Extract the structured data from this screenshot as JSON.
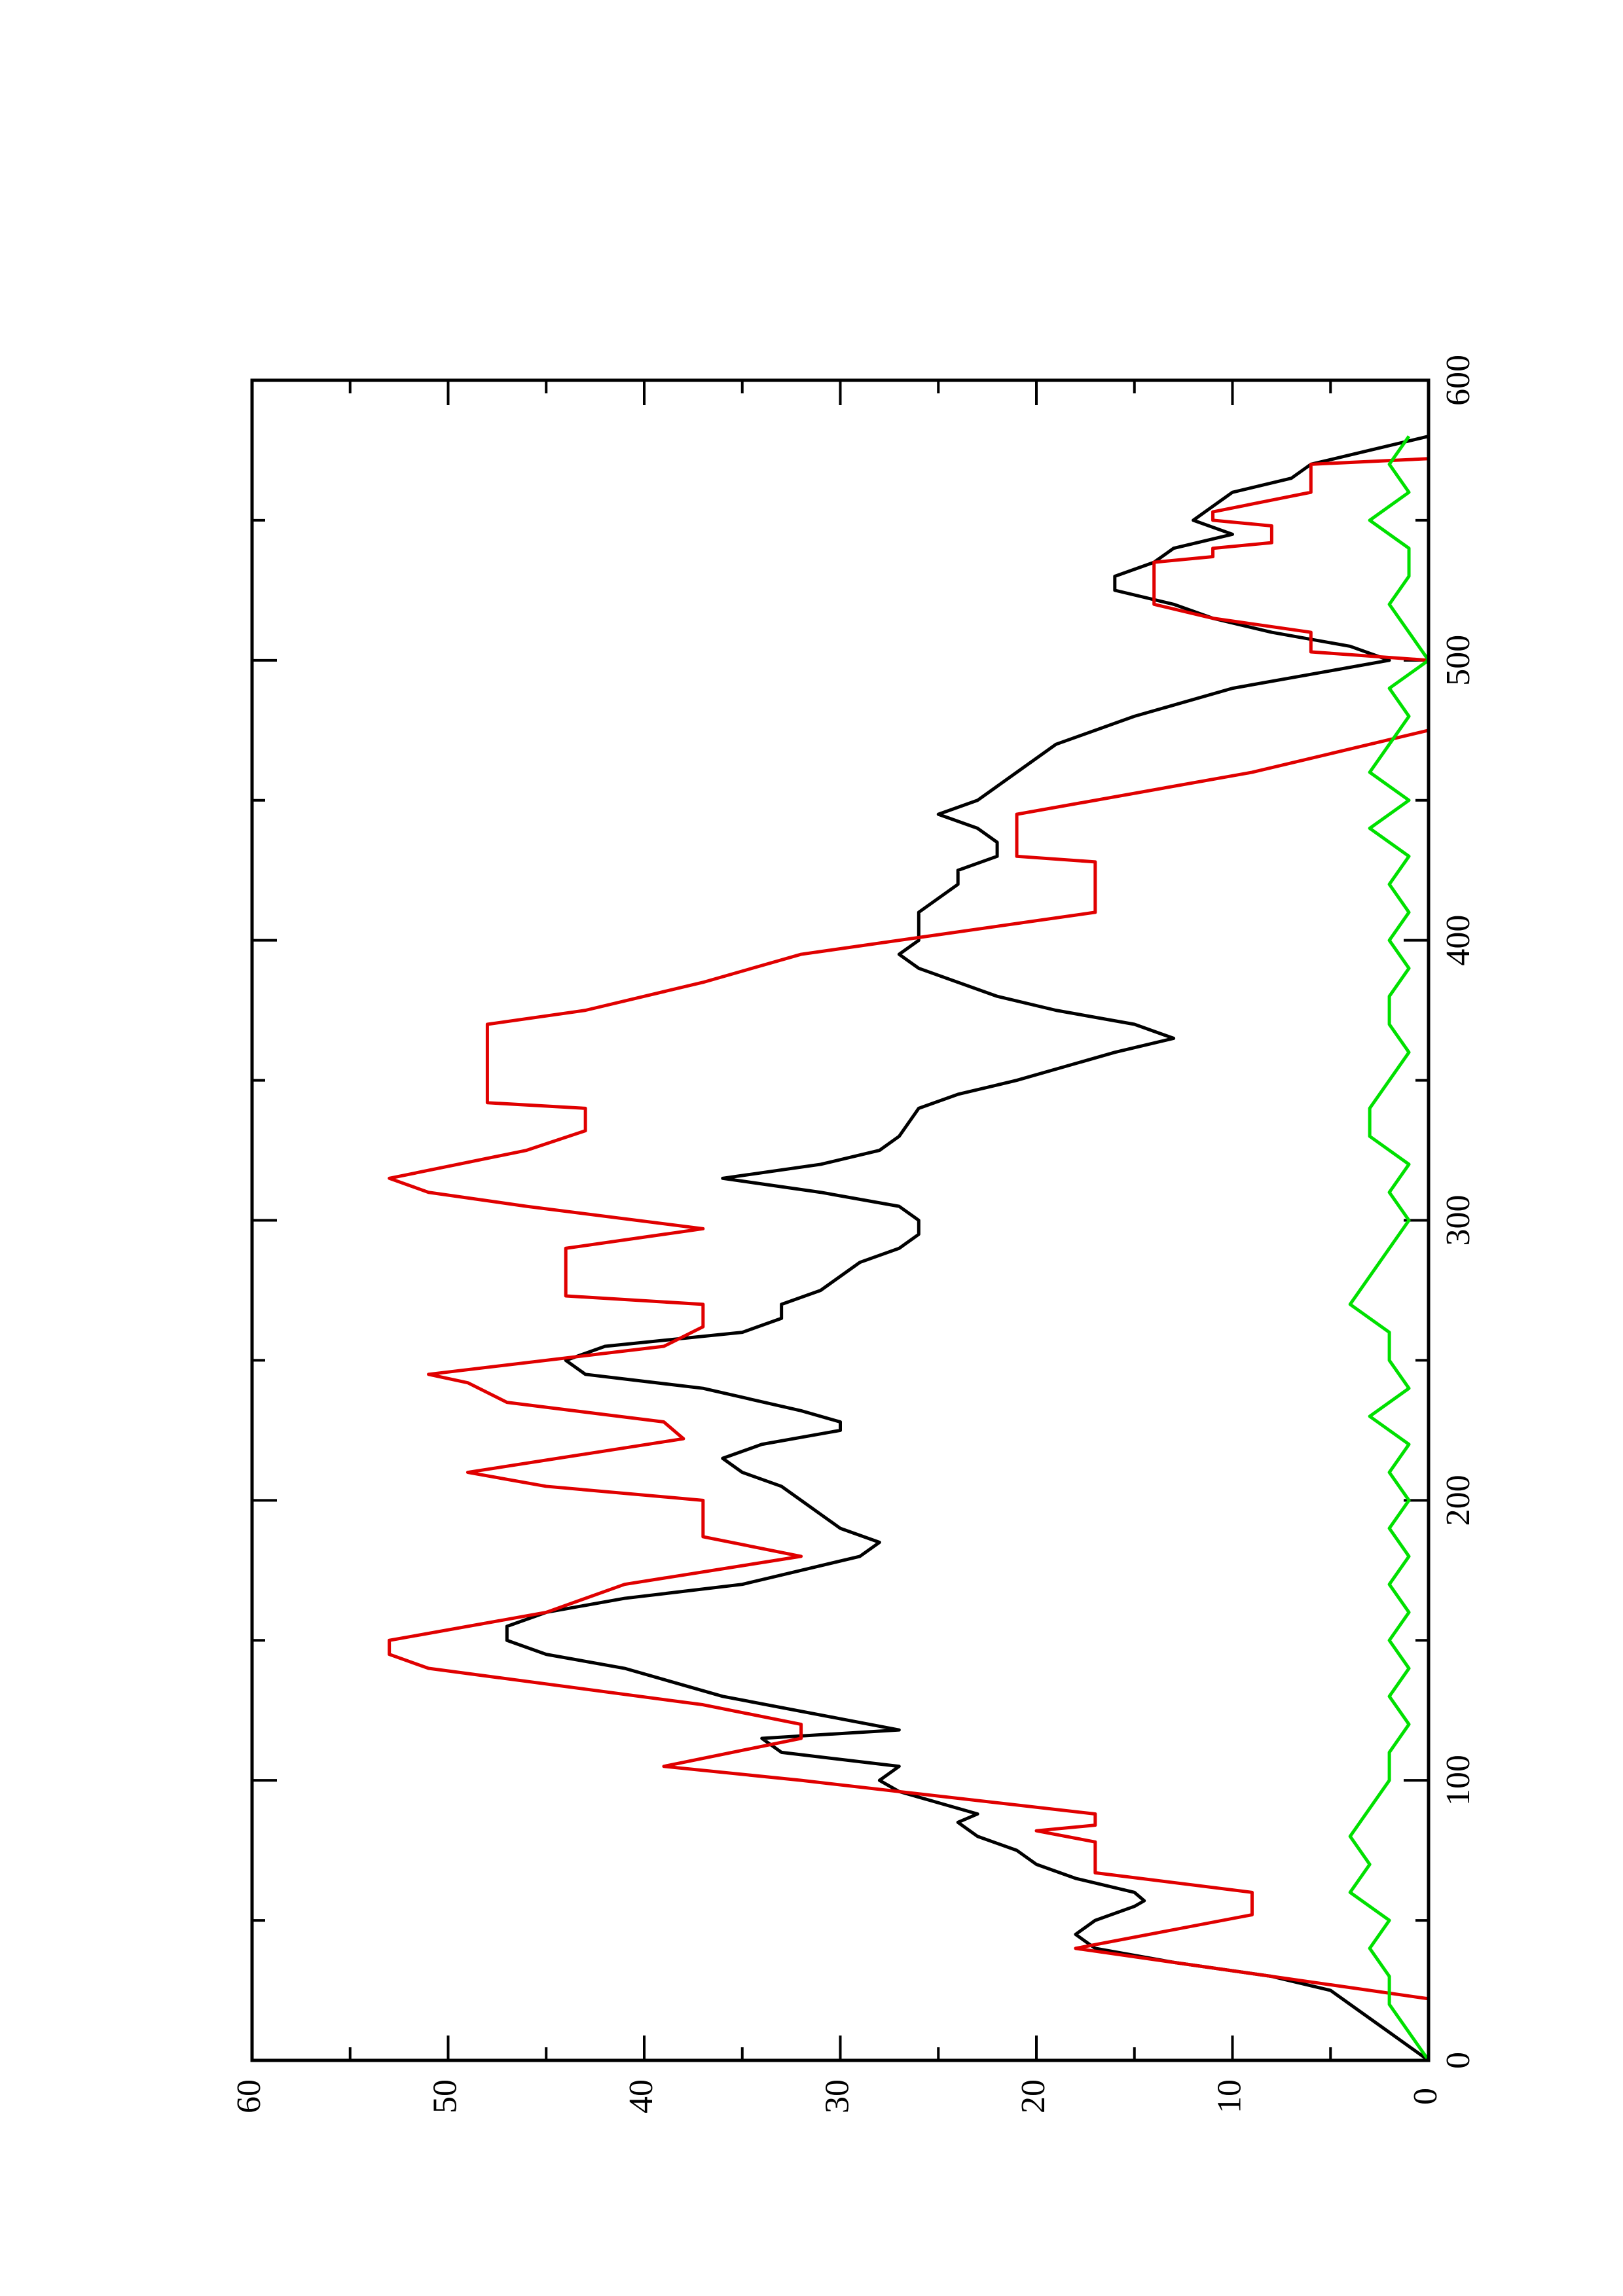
{
  "chart_data": {
    "type": "line",
    "xlim": [
      0,
      600
    ],
    "xticks": [
      0,
      100,
      200,
      300,
      400,
      500,
      600
    ],
    "xminorticks": [
      50,
      150,
      250,
      350,
      450,
      550
    ],
    "ylim": [
      0,
      60
    ],
    "yticks": [
      0,
      10,
      20,
      30,
      40,
      50,
      60
    ],
    "yminorticks": [
      5,
      15,
      25,
      35,
      45,
      55
    ],
    "rotated": true,
    "series": [
      {
        "color": "#000000",
        "x": [
          0,
          5,
          10,
          15,
          20,
          25,
          30,
          35,
          40,
          45,
          50,
          55,
          57,
          60,
          65,
          70,
          75,
          80,
          85,
          88,
          92,
          96,
          100,
          105,
          110,
          115,
          118,
          122,
          130,
          140,
          145,
          150,
          155,
          160,
          165,
          170,
          175,
          180,
          185,
          190,
          195,
          200,
          205,
          210,
          215,
          220,
          225,
          228,
          232,
          240,
          245,
          250,
          255,
          260,
          265,
          270,
          275,
          280,
          285,
          290,
          295,
          300,
          305,
          310,
          315,
          320,
          325,
          330,
          340,
          345,
          350,
          360,
          365,
          370,
          375,
          380,
          390,
          395,
          400,
          405,
          410,
          415,
          420,
          425,
          430,
          435,
          440,
          445,
          450,
          460,
          470,
          480,
          490,
          500,
          505,
          510,
          515,
          520,
          525,
          530,
          535,
          540,
          545,
          550,
          555,
          560,
          565,
          570,
          575,
          580
        ],
        "values": [
          0,
          1,
          2,
          3,
          4,
          5,
          8,
          13,
          17,
          18,
          17,
          15,
          14.5,
          15,
          18,
          20,
          21,
          23,
          24,
          23,
          25,
          27,
          28,
          27,
          33,
          34,
          27,
          30,
          36,
          41,
          45,
          47,
          47,
          45,
          41,
          35,
          32,
          29,
          28,
          30,
          31,
          32,
          33,
          35,
          36,
          34,
          30,
          30,
          32,
          37,
          43,
          44,
          42,
          35,
          33,
          33,
          31,
          30,
          29,
          27,
          26,
          26,
          27,
          31,
          36,
          31,
          28,
          27,
          26,
          24,
          21,
          16,
          13,
          15,
          19,
          22,
          26,
          27,
          26,
          26,
          26,
          25,
          24,
          24,
          22,
          22,
          23,
          25,
          23,
          21,
          19,
          15,
          10,
          2,
          4,
          8,
          11,
          13,
          16,
          16,
          14,
          13,
          10,
          12,
          11,
          10,
          7,
          6,
          3,
          0
        ]
      },
      {
        "color": "#e00000",
        "x": [
          0,
          22,
          40,
          52,
          60,
          67,
          78,
          82,
          84,
          88,
          100,
          105,
          115,
          120,
          127,
          140,
          145,
          150,
          160,
          170,
          180,
          187,
          200,
          205,
          210,
          222,
          228,
          235,
          242,
          245,
          255,
          262,
          270,
          273,
          290,
          297,
          305,
          310,
          315,
          325,
          332,
          340,
          342,
          370,
          375,
          385,
          395,
          410,
          428,
          430,
          445,
          460,
          475,
          500,
          503,
          510,
          515,
          520,
          535,
          537,
          540,
          542,
          548,
          550,
          553,
          560,
          570,
          572,
          580
        ],
        "values": [
          0,
          0,
          18,
          9,
          9,
          17,
          17,
          20,
          17,
          17,
          32,
          39,
          32,
          32,
          37,
          51,
          53,
          53,
          45,
          41,
          32,
          37,
          37,
          45,
          49,
          38,
          39,
          47,
          49,
          51,
          39,
          37,
          37,
          44,
          44,
          37,
          46,
          51,
          53,
          46,
          43,
          43,
          48,
          48,
          43,
          37,
          32,
          17,
          17,
          21,
          21,
          9,
          0,
          0,
          6,
          6,
          11,
          14,
          14,
          11,
          11,
          8,
          8,
          11,
          11,
          6,
          6,
          0,
          0
        ]
      },
      {
        "color": "#00e000",
        "x": [
          0,
          10,
          20,
          30,
          40,
          50,
          60,
          70,
          80,
          90,
          100,
          110,
          120,
          130,
          140,
          150,
          160,
          170,
          180,
          190,
          200,
          210,
          220,
          230,
          240,
          250,
          260,
          270,
          280,
          290,
          300,
          310,
          320,
          330,
          340,
          350,
          360,
          370,
          380,
          390,
          400,
          410,
          420,
          430,
          440,
          450,
          460,
          470,
          480,
          490,
          500,
          510,
          520,
          530,
          540,
          550,
          560,
          570,
          580
        ],
        "values": [
          0,
          1,
          2,
          2,
          3,
          2,
          4,
          3,
          4,
          3,
          2,
          2,
          1,
          2,
          1,
          2,
          1,
          2,
          1,
          2,
          1,
          2,
          1,
          3,
          1,
          2,
          2,
          4,
          3,
          2,
          1,
          2,
          1,
          3,
          3,
          2,
          1,
          2,
          2,
          1,
          2,
          1,
          2,
          1,
          3,
          1,
          3,
          2,
          1,
          2,
          0,
          1,
          2,
          1,
          1,
          3,
          1,
          2,
          1
        ]
      }
    ]
  }
}
